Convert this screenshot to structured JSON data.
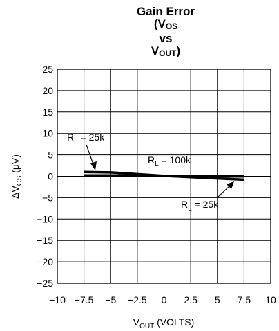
{
  "chart_data": {
    "type": "line",
    "title": {
      "line1": "Gain Error",
      "line2": {
        "pre": "(V",
        "sub": "OS"
      },
      "line3": "vs",
      "line4": {
        "pre": "V",
        "sub": "OUT",
        "post": ")"
      }
    },
    "xlabel": {
      "main": "V",
      "sub": "OUT",
      "rest": " (VOLTS)"
    },
    "ylabel": {
      "pre": "ΔV",
      "sub": "OS",
      "rest": " (μV)"
    },
    "xlim": [
      -10,
      10
    ],
    "ylim": [
      -25,
      25
    ],
    "x_ticks": [
      -10,
      -7.5,
      -5,
      -2.5,
      0,
      2.5,
      5,
      7.5,
      10
    ],
    "x_tick_labels": [
      "−10",
      "−7.5",
      "−5",
      "−2.5",
      "0",
      "2.5",
      "5",
      "7.5",
      "10"
    ],
    "y_ticks": [
      25,
      20,
      15,
      10,
      5,
      0,
      -5,
      -10,
      -15,
      -20,
      -25
    ],
    "y_tick_labels": [
      "25",
      "20",
      "15",
      "10",
      "5",
      "0",
      "−5",
      "−10",
      "−15",
      "−20",
      "−25"
    ],
    "grid": true,
    "series": [
      {
        "name": "R_L = 25k",
        "x": [
          -7.5,
          -5,
          -2.5,
          0,
          2.5,
          5,
          7.5
        ],
        "values": [
          1.0,
          0.9,
          0.5,
          0.1,
          -0.2,
          -0.5,
          -0.8
        ]
      },
      {
        "name": "R_L = 100k",
        "x": [
          -7.5,
          -5,
          -2.5,
          0,
          2.5,
          5,
          7.5
        ],
        "values": [
          0.2,
          0.2,
          0.15,
          0.1,
          0.05,
          0.0,
          -0.05
        ]
      }
    ],
    "annotations": [
      {
        "pre": "R",
        "sub": "L",
        "post": " = 25k",
        "points_to": [
          -6.8,
          1.0
        ]
      },
      {
        "pre": "R",
        "sub": "L",
        "post": " =  100k"
      },
      {
        "pre": "R",
        "sub": "L",
        "post": " = 25k",
        "points_to": [
          6.6,
          -0.7
        ]
      }
    ]
  }
}
